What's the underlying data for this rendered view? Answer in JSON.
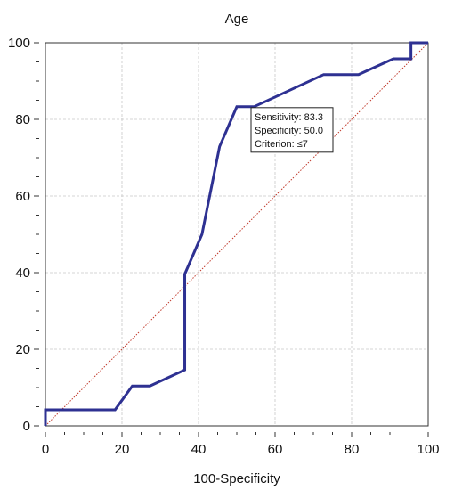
{
  "chart_data": {
    "type": "line",
    "title": "Age",
    "xlabel": "100-Specificity",
    "ylabel": "",
    "xlim": [
      0,
      100
    ],
    "ylim": [
      0,
      100
    ],
    "x_ticks": [
      0,
      20,
      40,
      60,
      80,
      100
    ],
    "y_ticks": [
      0,
      20,
      40,
      60,
      80,
      100
    ],
    "grid": true,
    "colors": {
      "roc": "#2e3192",
      "diagonal": "#c0392b",
      "grid": "#c8c8c8"
    },
    "series": [
      {
        "x": [
          0,
          0,
          18.2,
          22.7,
          27.3,
          36.4,
          36.4,
          40.9,
          45.5,
          50,
          54.5,
          72.7,
          81.8,
          90.9,
          95.5,
          95.5,
          100
        ],
        "y": [
          0,
          4.2,
          4.2,
          10.4,
          10.4,
          14.6,
          39.6,
          50,
          72.9,
          83.3,
          83.3,
          91.7,
          91.7,
          95.8,
          95.8,
          100,
          100
        ]
      }
    ],
    "reference_line": {
      "x": [
        0,
        100
      ],
      "y": [
        0,
        100
      ]
    },
    "annotation": {
      "lines": [
        "Sensitivity: 83.3",
        "Specificity: 50.0",
        "Criterion: ≤7"
      ],
      "anchor_x": 50,
      "anchor_y": 83.3
    }
  }
}
